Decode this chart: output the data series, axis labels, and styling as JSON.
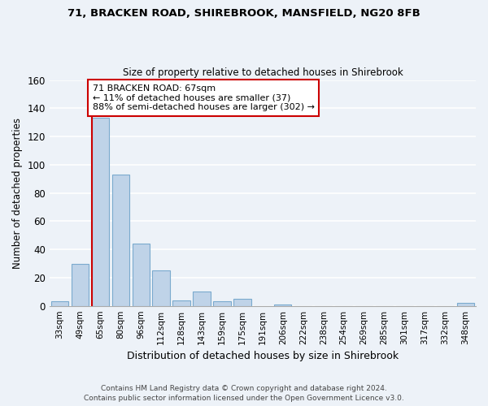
{
  "title1": "71, BRACKEN ROAD, SHIREBROOK, MANSFIELD, NG20 8FB",
  "title2": "Size of property relative to detached houses in Shirebrook",
  "xlabel": "Distribution of detached houses by size in Shirebrook",
  "ylabel": "Number of detached properties",
  "bar_labels": [
    "33sqm",
    "49sqm",
    "65sqm",
    "80sqm",
    "96sqm",
    "112sqm",
    "128sqm",
    "143sqm",
    "159sqm",
    "175sqm",
    "191sqm",
    "206sqm",
    "222sqm",
    "238sqm",
    "254sqm",
    "269sqm",
    "285sqm",
    "301sqm",
    "317sqm",
    "332sqm",
    "348sqm"
  ],
  "bar_values": [
    3,
    30,
    133,
    93,
    44,
    25,
    4,
    10,
    3,
    5,
    0,
    1,
    0,
    0,
    0,
    0,
    0,
    0,
    0,
    0,
    2
  ],
  "bar_color": "#bfd3e8",
  "bar_edge_color": "#7aaace",
  "subject_line_color": "#cc0000",
  "annotation_text": "71 BRACKEN ROAD: 67sqm\n← 11% of detached houses are smaller (37)\n88% of semi-detached houses are larger (302) →",
  "annotation_box_color": "#ffffff",
  "annotation_box_edge": "#cc0000",
  "ylim": [
    0,
    160
  ],
  "yticks": [
    0,
    20,
    40,
    60,
    80,
    100,
    120,
    140,
    160
  ],
  "footer": "Contains HM Land Registry data © Crown copyright and database right 2024.\nContains public sector information licensed under the Open Government Licence v3.0.",
  "bg_color": "#edf2f8"
}
